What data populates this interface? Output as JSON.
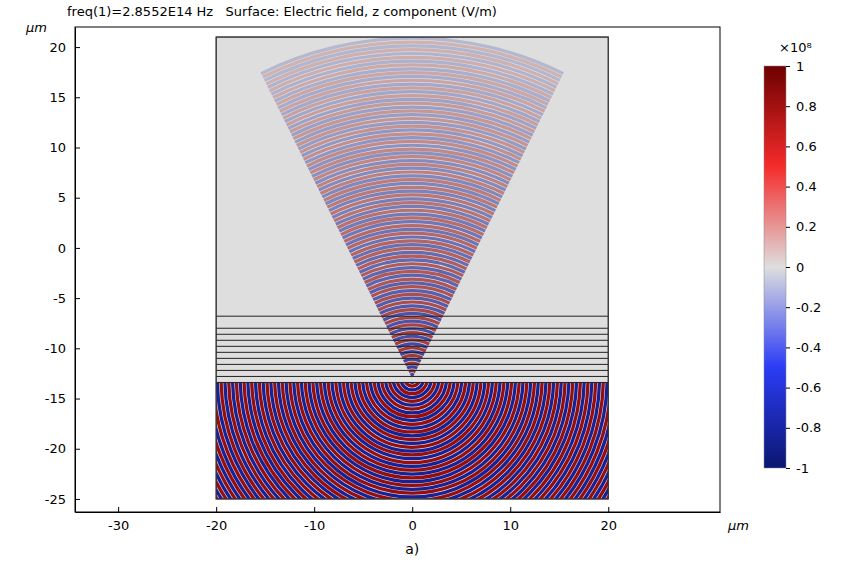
{
  "chart_data": {
    "type": "surface",
    "title": "freq(1)=2.8552E14 Hz   Surface: Electric field, z component (V/m)",
    "x_label": "μm",
    "y_label": "μm",
    "caption": "a)",
    "xlim": [
      -34.4,
      31.4
    ],
    "ylim": [
      -26.3,
      22
    ],
    "xticks": [
      -30,
      -20,
      -10,
      0,
      10,
      20
    ],
    "yticks": [
      -25,
      -20,
      -15,
      -10,
      -5,
      0,
      5,
      10,
      15,
      20
    ],
    "domain": {
      "x": [
        -20,
        20
      ],
      "y": [
        -25,
        21
      ]
    },
    "layers": [
      -6.8,
      -8.0,
      -8.6,
      -9.2,
      -9.8,
      -10.4,
      -11.0,
      -11.6,
      -12.2,
      -12.8,
      -13.4
    ],
    "colorbar": {
      "range": [
        -1,
        1
      ],
      "ticks": [
        -1,
        -0.8,
        -0.6,
        -0.4,
        -0.2,
        0,
        0.2,
        0.4,
        0.6,
        0.8,
        1
      ],
      "label": "×10⁸"
    }
  }
}
